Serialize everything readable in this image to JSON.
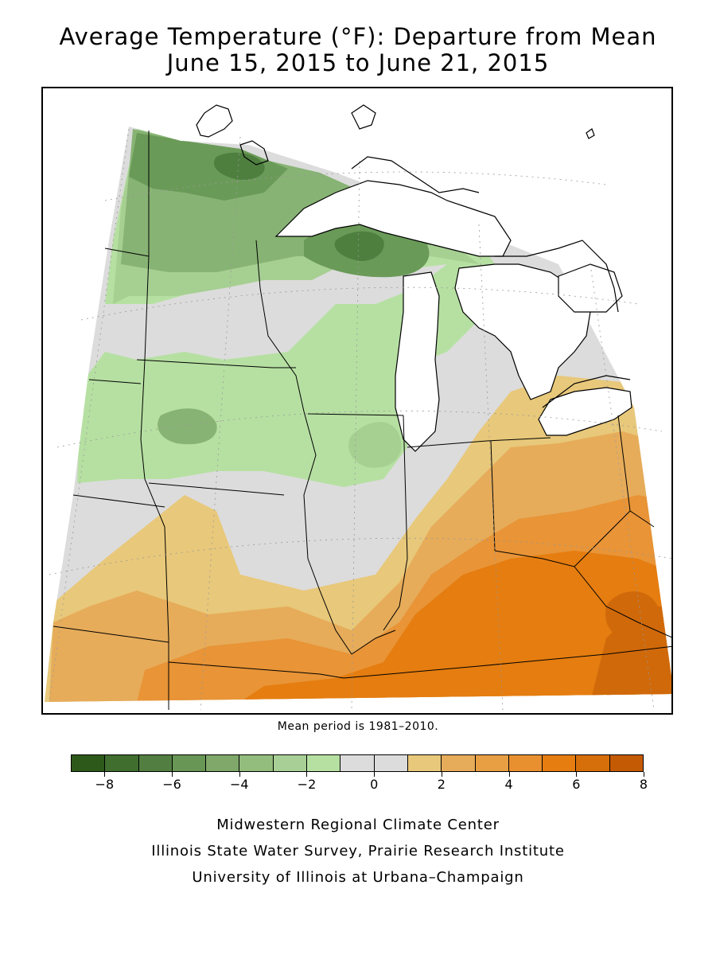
{
  "title": {
    "line1": "Average Temperature (°F): Departure from Mean",
    "line2": "June 15, 2015 to June 21, 2015"
  },
  "map": {
    "variable": "Average Temperature departure from mean",
    "units": "°F",
    "region": "Midwest",
    "background": "#ffffff",
    "zone_colors": {
      "dk_green": "#4e7f3f",
      "md_green": "#6a9a58",
      "green": "#87b374",
      "lt_green": "#a6cf92",
      "pale_green": "#b6e0a2",
      "neutral": "#dcdcdc",
      "pale_orange": "#e8c87a",
      "lt_orange": "#e6ac5a",
      "orange": "#e89437",
      "dk_orange": "#e57d10",
      "deep_orange": "#d0690a",
      "water": "#ffffff",
      "lines": "#000000"
    }
  },
  "mean_period": "Mean period is 1981–2010.",
  "legend": {
    "colors": [
      "#2d5a1a",
      "#3f6e2e",
      "#527f41",
      "#689654",
      "#7fa86a",
      "#93bd7d",
      "#a8d096",
      "#b6e0a2",
      "#dcdcdc",
      "#dcdcdc",
      "#e8c87a",
      "#e6ac5a",
      "#e89f43",
      "#e89030",
      "#e57d10",
      "#d66f0a",
      "#c55a05"
    ],
    "tick_labels": [
      "−8",
      "−6",
      "−4",
      "−2",
      "0",
      "2",
      "4",
      "6",
      "8"
    ],
    "tick_values": [
      -8,
      -6,
      -4,
      -2,
      0,
      2,
      4,
      6,
      8
    ],
    "range": [
      -9,
      8
    ]
  },
  "credits": {
    "line1": "Midwestern Regional Climate Center",
    "line2": "Illinois State Water Survey, Prairie Research Institute",
    "line3": "University of Illinois at Urbana–Champaign"
  }
}
